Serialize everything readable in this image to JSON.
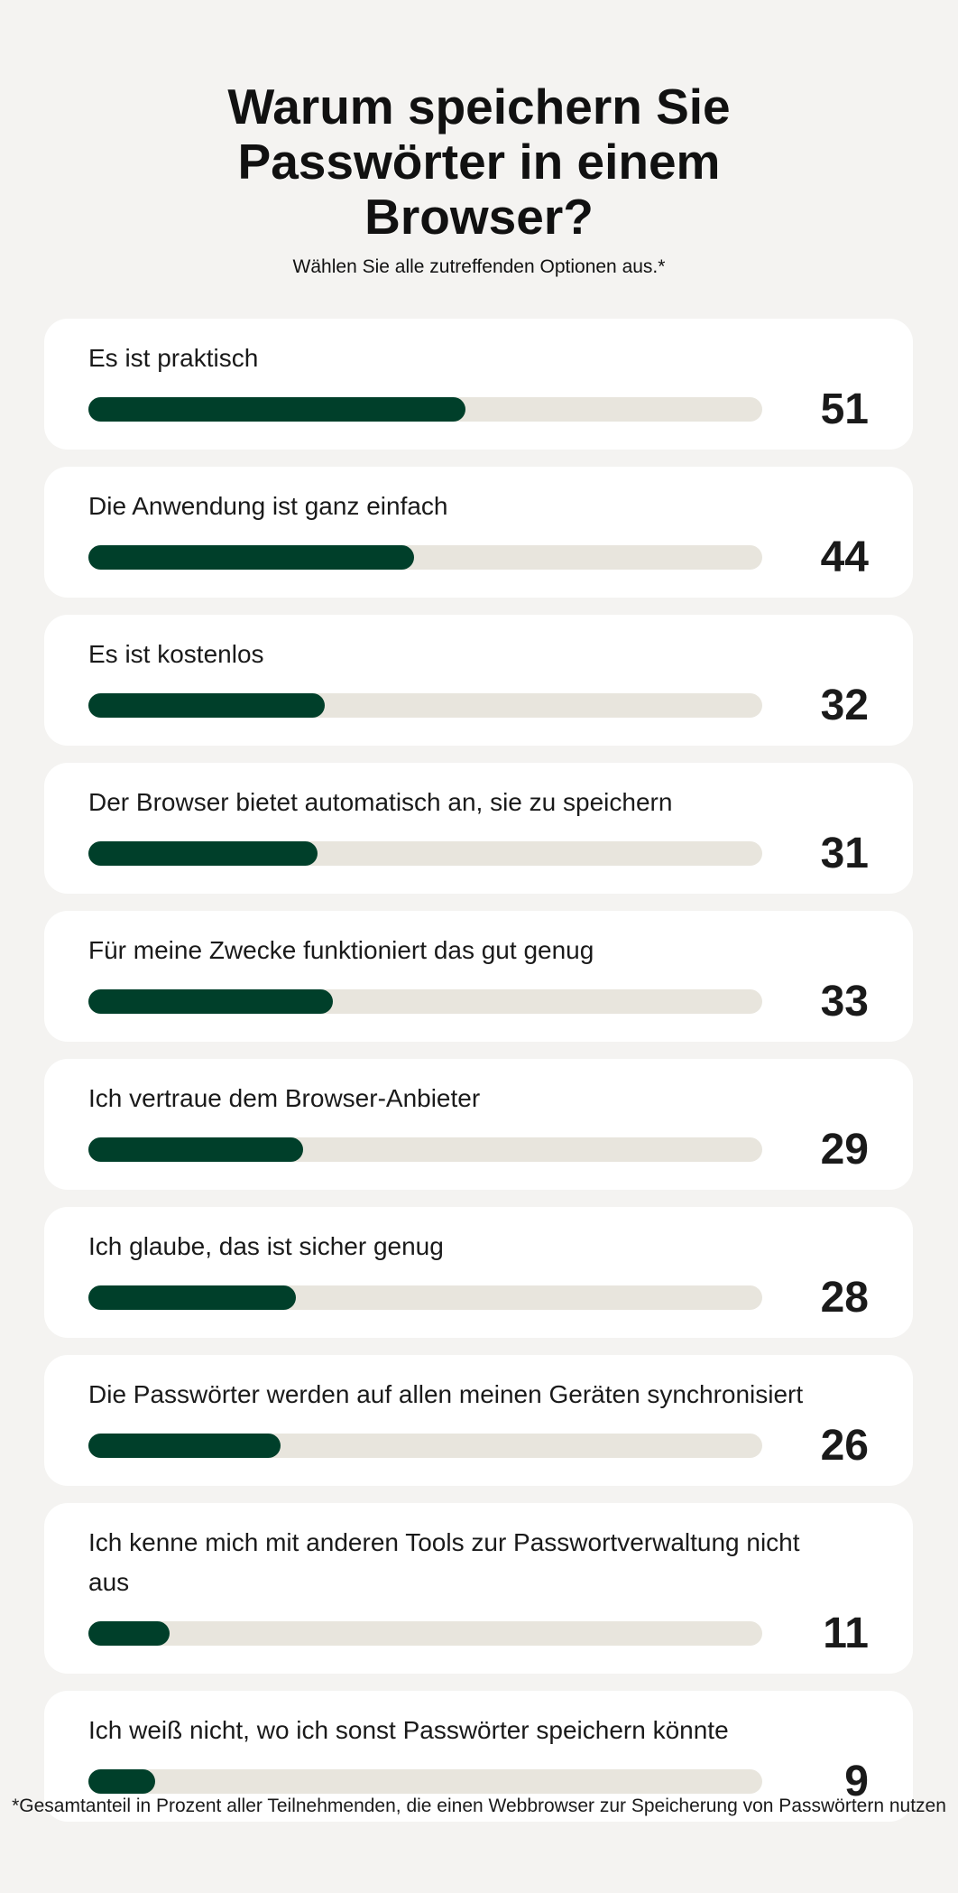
{
  "chart_data": {
    "type": "bar",
    "title": "Warum speichern Sie Passwörter in einem Browser?",
    "subtitle": "Wählen Sie alle zutreffenden Optionen aus.*",
    "categories": [
      "Es ist praktisch",
      "Die Anwendung ist ganz einfach",
      "Es ist kostenlos",
      "Der Browser bietet automatisch an, sie zu speichern",
      "Für meine Zwecke funktioniert das gut genug",
      "Ich vertraue dem Browser-Anbieter",
      "Ich glaube, das ist sicher genug",
      "Die Passwörter werden auf allen meinen Geräten synchronisiert",
      "Ich kenne mich mit anderen Tools zur Passwortverwaltung nicht aus",
      "Ich weiß nicht, wo ich sonst Passwörter speichern könnte"
    ],
    "values": [
      51,
      44,
      32,
      31,
      33,
      29,
      28,
      26,
      11,
      9
    ],
    "color": "#003f2a",
    "footnote": "*Gesamtanteil in Prozent aller Teilnehmenden, die einen Webbrowser zur Speicherung von Passwörtern nutzen"
  }
}
